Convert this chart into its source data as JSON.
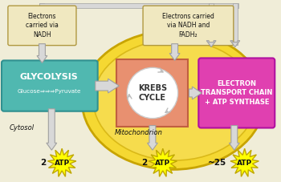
{
  "bg_color": "#f0edd8",
  "mito_fill": "#f5d832",
  "mito_edge": "#c8a400",
  "mito_inner_fill": "#f8e060",
  "glyc_fill": "#50b8b0",
  "glyc_edge": "#309090",
  "krebs_fill": "#e89070",
  "krebs_edge": "#c06040",
  "etc_fill": "#e040b0",
  "etc_edge": "#b010a0",
  "nadh_fill": "#f0e8c0",
  "nadh_edge": "#b09840",
  "arrow_fill": "#d8d8d8",
  "arrow_edge": "#a0a0a0",
  "atp_fill": "#ffff00",
  "atp_edge": "#c0a800",
  "font_black": "#111111",
  "font_white": "#ffffff",
  "glyc_title": "GLYCOLYSIS",
  "glyc_sub": "Glucose⇒⇒⇒Pyruvate",
  "krebs_title": "KREBS\nCYCLE",
  "etc_title": "ELECTRON\nTRANSPORT CHAIN\n+ ATP SYNTHASE",
  "nadh_left_text": "Electrons\ncarried via\nNADH",
  "nadh_right_text": "Electrons carried\nvia NADH and\nFADH₂",
  "cytosol_text": "Cytosol",
  "mito_text": "Mitochondrion",
  "atp_counts": [
    "2",
    "2",
    "~25"
  ]
}
